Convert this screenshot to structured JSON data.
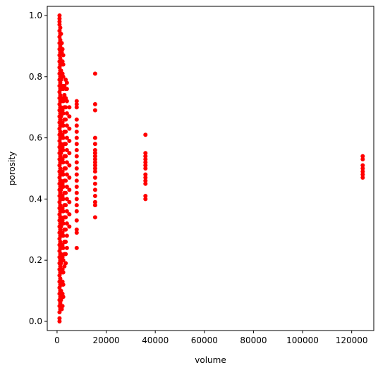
{
  "chart_data": {
    "type": "scatter",
    "xlabel": "volume",
    "ylabel": "porosity",
    "xlim": [
      -4000,
      129000
    ],
    "ylim": [
      -0.03,
      1.03
    ],
    "x_ticks": [
      0,
      20000,
      40000,
      60000,
      80000,
      100000,
      120000
    ],
    "x_tick_labels": [
      "0",
      "20000",
      "40000",
      "60000",
      "80000",
      "100000",
      "120000"
    ],
    "y_ticks": [
      0.0,
      0.2,
      0.4,
      0.6,
      0.8,
      1.0
    ],
    "y_tick_labels": [
      "0.0",
      "0.2",
      "0.4",
      "0.6",
      "0.8",
      "1.0"
    ],
    "grid": false,
    "marker_color": "#ff0000",
    "series": [
      {
        "clusters": [
          {
            "x": 1000,
            "y": [
              0.0,
              0.01,
              0.03,
              0.05,
              0.07,
              0.09,
              0.11,
              0.13,
              0.15,
              0.17,
              0.19,
              0.21,
              0.23,
              0.25,
              0.27,
              0.29,
              0.31,
              0.33,
              0.35,
              0.37,
              0.39,
              0.41,
              0.43,
              0.45,
              0.47,
              0.49,
              0.51,
              0.53,
              0.55,
              0.57,
              0.59,
              0.61,
              0.63,
              0.65,
              0.67,
              0.69,
              0.71,
              0.73,
              0.75,
              0.77,
              0.79,
              0.81,
              0.83,
              0.85,
              0.87,
              0.89,
              0.91,
              0.93,
              0.95,
              0.97,
              0.98,
              0.99,
              1.0
            ]
          },
          {
            "x": 1300,
            "y": [
              0.04,
              0.06,
              0.08,
              0.1,
              0.12,
              0.14,
              0.16,
              0.18,
              0.2,
              0.22,
              0.24,
              0.26,
              0.28,
              0.3,
              0.32,
              0.34,
              0.36,
              0.38,
              0.4,
              0.42,
              0.44,
              0.46,
              0.48,
              0.5,
              0.52,
              0.54,
              0.56,
              0.58,
              0.6,
              0.62,
              0.64,
              0.66,
              0.68,
              0.7,
              0.72,
              0.74,
              0.76,
              0.78,
              0.8,
              0.82,
              0.84,
              0.86,
              0.88,
              0.9,
              0.92,
              0.94,
              0.96
            ]
          },
          {
            "x": 1600,
            "y": [
              0.04,
              0.07,
              0.1,
              0.13,
              0.16,
              0.19,
              0.22,
              0.25,
              0.28,
              0.31,
              0.34,
              0.37,
              0.4,
              0.43,
              0.46,
              0.49,
              0.52,
              0.55,
              0.58,
              0.61,
              0.64,
              0.67,
              0.7,
              0.73,
              0.76,
              0.79,
              0.82,
              0.85,
              0.88,
              0.91,
              0.94
            ]
          },
          {
            "x": 1900,
            "y": [
              0.04,
              0.08,
              0.12,
              0.16,
              0.2,
              0.24,
              0.28,
              0.32,
              0.36,
              0.4,
              0.44,
              0.48,
              0.52,
              0.56,
              0.6,
              0.64,
              0.68,
              0.72,
              0.76,
              0.8,
              0.84,
              0.88,
              0.91
            ]
          },
          {
            "x": 2200,
            "y": [
              0.05,
              0.09,
              0.13,
              0.17,
              0.21,
              0.25,
              0.29,
              0.33,
              0.37,
              0.41,
              0.45,
              0.49,
              0.53,
              0.57,
              0.61,
              0.65,
              0.69,
              0.73,
              0.77,
              0.81,
              0.85,
              0.89
            ]
          },
          {
            "x": 2500,
            "y": [
              0.08,
              0.12,
              0.16,
              0.2,
              0.24,
              0.28,
              0.32,
              0.36,
              0.4,
              0.44,
              0.48,
              0.52,
              0.56,
              0.6,
              0.64,
              0.68,
              0.72,
              0.76,
              0.8,
              0.84,
              0.87
            ]
          },
          {
            "x": 3000,
            "y": [
              0.18,
              0.22,
              0.26,
              0.3,
              0.34,
              0.38,
              0.42,
              0.46,
              0.5,
              0.54,
              0.58,
              0.62,
              0.66,
              0.7,
              0.74,
              0.77
            ]
          },
          {
            "x": 3500,
            "y": [
              0.19,
              0.22,
              0.26,
              0.3,
              0.34,
              0.38,
              0.42,
              0.46,
              0.5,
              0.54,
              0.58,
              0.62,
              0.66,
              0.7,
              0.73,
              0.76,
              0.79
            ]
          },
          {
            "x": 4000,
            "y": [
              0.24,
              0.28,
              0.32,
              0.36,
              0.4,
              0.44,
              0.48,
              0.52,
              0.56,
              0.6,
              0.64,
              0.68,
              0.72,
              0.76,
              0.78
            ]
          },
          {
            "x": 5000,
            "y": [
              0.31,
              0.35,
              0.39,
              0.43,
              0.47,
              0.51,
              0.55,
              0.59,
              0.63,
              0.67,
              0.7
            ]
          },
          {
            "x": 8000,
            "y": [
              0.24,
              0.29,
              0.3,
              0.33,
              0.36,
              0.38,
              0.4,
              0.42,
              0.44,
              0.46,
              0.48,
              0.5,
              0.52,
              0.54,
              0.56,
              0.58,
              0.6,
              0.62,
              0.64,
              0.66,
              0.7,
              0.71,
              0.72
            ]
          },
          {
            "x": 15500,
            "y": [
              0.34,
              0.38,
              0.39,
              0.41,
              0.43,
              0.45,
              0.47,
              0.49,
              0.5,
              0.51,
              0.52,
              0.53,
              0.54,
              0.55,
              0.56,
              0.58,
              0.6,
              0.69,
              0.71,
              0.81
            ]
          },
          {
            "x": 36000,
            "y": [
              0.4,
              0.41,
              0.45,
              0.46,
              0.47,
              0.48,
              0.5,
              0.51,
              0.52,
              0.53,
              0.54,
              0.55,
              0.61
            ]
          },
          {
            "x": 124500,
            "y": [
              0.47,
              0.48,
              0.49,
              0.5,
              0.51,
              0.53,
              0.54
            ]
          }
        ]
      }
    ]
  }
}
